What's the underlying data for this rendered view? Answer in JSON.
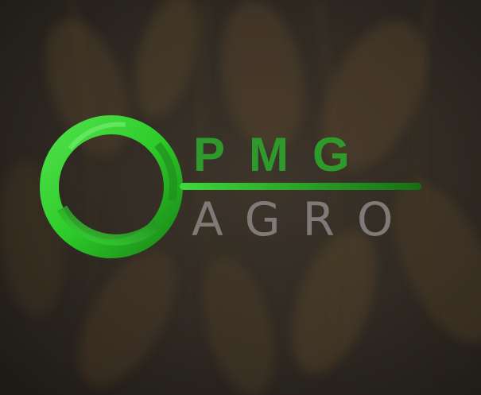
{
  "brand": {
    "name_top": "PMG",
    "name_bottom": "AGRO"
  },
  "colors": {
    "ring_green": "#2ecc2a",
    "ring_dark_green": "#1f8f1d",
    "text_green": "#2f9a2c",
    "text_gray": "#7d7a77",
    "background": "#2a2620"
  },
  "icons": {
    "logo_ring": "green-ring-icon",
    "background": "wheat-field-image"
  }
}
